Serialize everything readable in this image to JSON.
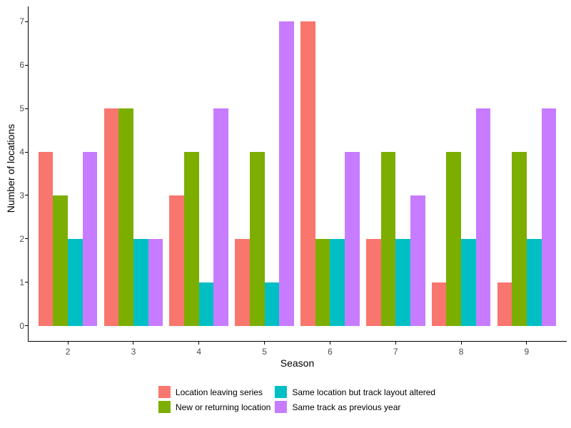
{
  "chart_data": {
    "type": "bar",
    "title": "",
    "xlabel": "Season",
    "ylabel": "Number of locations",
    "categories": [
      "2",
      "3",
      "4",
      "5",
      "6",
      "7",
      "8",
      "9"
    ],
    "series": [
      {
        "name": "Location leaving series",
        "color": "#F8766D",
        "values": [
          4,
          5,
          3,
          2,
          7,
          2,
          1,
          1
        ]
      },
      {
        "name": "New or returning location",
        "color": "#7CAE00",
        "values": [
          3,
          5,
          4,
          4,
          2,
          4,
          4,
          4
        ]
      },
      {
        "name": "Same location but track layout altered",
        "color": "#00BFC4",
        "values": [
          2,
          2,
          1,
          1,
          2,
          2,
          2,
          2
        ]
      },
      {
        "name": "Same track as previous year",
        "color": "#C77CFF",
        "values": [
          4,
          2,
          5,
          7,
          4,
          3,
          5,
          5
        ]
      }
    ],
    "y_ticks": [
      0,
      1,
      2,
      3,
      4,
      5,
      6,
      7
    ],
    "ylim": [
      0,
      7
    ],
    "grid": false,
    "legend_position": "bottom",
    "legend_columns": 2,
    "background_color": "#FFFFFF",
    "axis_line_color": "#000000",
    "tick_label_color": "#4D4D4D"
  }
}
